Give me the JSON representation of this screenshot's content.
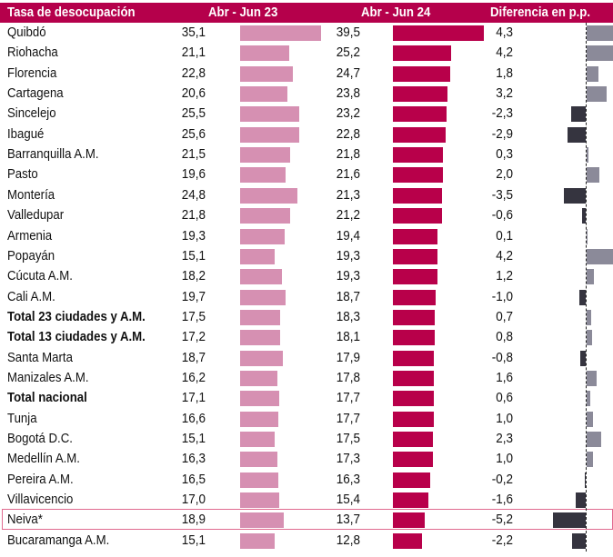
{
  "chart_data": {
    "type": "table",
    "title": "Tasa de desocupación",
    "columns": [
      "Tasa de desocupación",
      "Abr - Jun 23",
      "Abr - Jun 24",
      "Diferencia en p.p."
    ],
    "rows": [
      {
        "name": "Quibdó",
        "v23": "35,1",
        "v24": "39,5",
        "diff": "4,3",
        "n23": 35.1,
        "n24": 39.5,
        "nd": 4.3,
        "bold": false
      },
      {
        "name": "Riohacha",
        "v23": "21,1",
        "v24": "25,2",
        "diff": "4,2",
        "n23": 21.1,
        "n24": 25.2,
        "nd": 4.2,
        "bold": false
      },
      {
        "name": "Florencia",
        "v23": "22,8",
        "v24": "24,7",
        "diff": "1,8",
        "n23": 22.8,
        "n24": 24.7,
        "nd": 1.8,
        "bold": false
      },
      {
        "name": "Cartagena",
        "v23": "20,6",
        "v24": "23,8",
        "diff": "3,2",
        "n23": 20.6,
        "n24": 23.8,
        "nd": 3.2,
        "bold": false
      },
      {
        "name": "Sincelejo",
        "v23": "25,5",
        "v24": "23,2",
        "diff": "-2,3",
        "n23": 25.5,
        "n24": 23.2,
        "nd": -2.3,
        "bold": false
      },
      {
        "name": "Ibagué",
        "v23": "25,6",
        "v24": "22,8",
        "diff": "-2,9",
        "n23": 25.6,
        "n24": 22.8,
        "nd": -2.9,
        "bold": false
      },
      {
        "name": "Barranquilla A.M.",
        "v23": "21,5",
        "v24": "21,8",
        "diff": "0,3",
        "n23": 21.5,
        "n24": 21.8,
        "nd": 0.3,
        "bold": false
      },
      {
        "name": "Pasto",
        "v23": "19,6",
        "v24": "21,6",
        "diff": "2,0",
        "n23": 19.6,
        "n24": 21.6,
        "nd": 2.0,
        "bold": false
      },
      {
        "name": "Montería",
        "v23": "24,8",
        "v24": "21,3",
        "diff": "-3,5",
        "n23": 24.8,
        "n24": 21.3,
        "nd": -3.5,
        "bold": false
      },
      {
        "name": "Valledupar",
        "v23": "21,8",
        "v24": "21,2",
        "diff": "-0,6",
        "n23": 21.8,
        "n24": 21.2,
        "nd": -0.6,
        "bold": false
      },
      {
        "name": "Armenia",
        "v23": "19,3",
        "v24": "19,4",
        "diff": "0,1",
        "n23": 19.3,
        "n24": 19.4,
        "nd": 0.1,
        "bold": false
      },
      {
        "name": "Popayán",
        "v23": "15,1",
        "v24": "19,3",
        "diff": "4,2",
        "n23": 15.1,
        "n24": 19.3,
        "nd": 4.2,
        "bold": false
      },
      {
        "name": "Cúcuta A.M.",
        "v23": "18,2",
        "v24": "19,3",
        "diff": "1,2",
        "n23": 18.2,
        "n24": 19.3,
        "nd": 1.2,
        "bold": false
      },
      {
        "name": "Cali A.M.",
        "v23": "19,7",
        "v24": "18,7",
        "diff": "-1,0",
        "n23": 19.7,
        "n24": 18.7,
        "nd": -1.0,
        "bold": false
      },
      {
        "name": "Total 23 ciudades y A.M.",
        "v23": "17,5",
        "v24": "18,3",
        "diff": "0,7",
        "n23": 17.5,
        "n24": 18.3,
        "nd": 0.7,
        "bold": true
      },
      {
        "name": "Total 13 ciudades y A.M.",
        "v23": "17,2",
        "v24": "18,1",
        "diff": "0,8",
        "n23": 17.2,
        "n24": 18.1,
        "nd": 0.8,
        "bold": true
      },
      {
        "name": "Santa Marta",
        "v23": "18,7",
        "v24": "17,9",
        "diff": "-0,8",
        "n23": 18.7,
        "n24": 17.9,
        "nd": -0.8,
        "bold": false
      },
      {
        "name": "Manizales A.M.",
        "v23": "16,2",
        "v24": "17,8",
        "diff": "1,6",
        "n23": 16.2,
        "n24": 17.8,
        "nd": 1.6,
        "bold": false
      },
      {
        "name": "Total nacional",
        "v23": "17,1",
        "v24": "17,7",
        "diff": "0,6",
        "n23": 17.1,
        "n24": 17.7,
        "nd": 0.6,
        "bold": true
      },
      {
        "name": "Tunja",
        "v23": "16,6",
        "v24": "17,7",
        "diff": "1,0",
        "n23": 16.6,
        "n24": 17.7,
        "nd": 1.0,
        "bold": false
      },
      {
        "name": "Bogotá D.C.",
        "v23": "15,1",
        "v24": "17,5",
        "diff": "2,3",
        "n23": 15.1,
        "n24": 17.5,
        "nd": 2.3,
        "bold": false
      },
      {
        "name": "Medellín A.M.",
        "v23": "16,3",
        "v24": "17,3",
        "diff": "1,0",
        "n23": 16.3,
        "n24": 17.3,
        "nd": 1.0,
        "bold": false
      },
      {
        "name": "Pereira A.M.",
        "v23": "16,5",
        "v24": "16,3",
        "diff": "-0,2",
        "n23": 16.5,
        "n24": 16.3,
        "nd": -0.2,
        "bold": false
      },
      {
        "name": "Villavicencio",
        "v23": "17,0",
        "v24": "15,4",
        "diff": "-1,6",
        "n23": 17.0,
        "n24": 15.4,
        "nd": -1.6,
        "bold": false
      },
      {
        "name": "Neiva*",
        "v23": "18,9",
        "v24": "13,7",
        "diff": "-5,2",
        "n23": 18.9,
        "n24": 13.7,
        "nd": -5.2,
        "bold": false,
        "highlight": true
      },
      {
        "name": "Bucaramanga A.M.",
        "v23": "15,1",
        "v24": "12,8",
        "diff": "-2,2",
        "n23": 15.1,
        "n24": 12.8,
        "nd": -2.2,
        "bold": false
      }
    ],
    "colors": {
      "header": "#b5004b",
      "bar_2023": "#d690b2",
      "bar_2024": "#b8004a",
      "diff_positive": "#8b8a99",
      "diff_negative": "#35343f"
    }
  }
}
